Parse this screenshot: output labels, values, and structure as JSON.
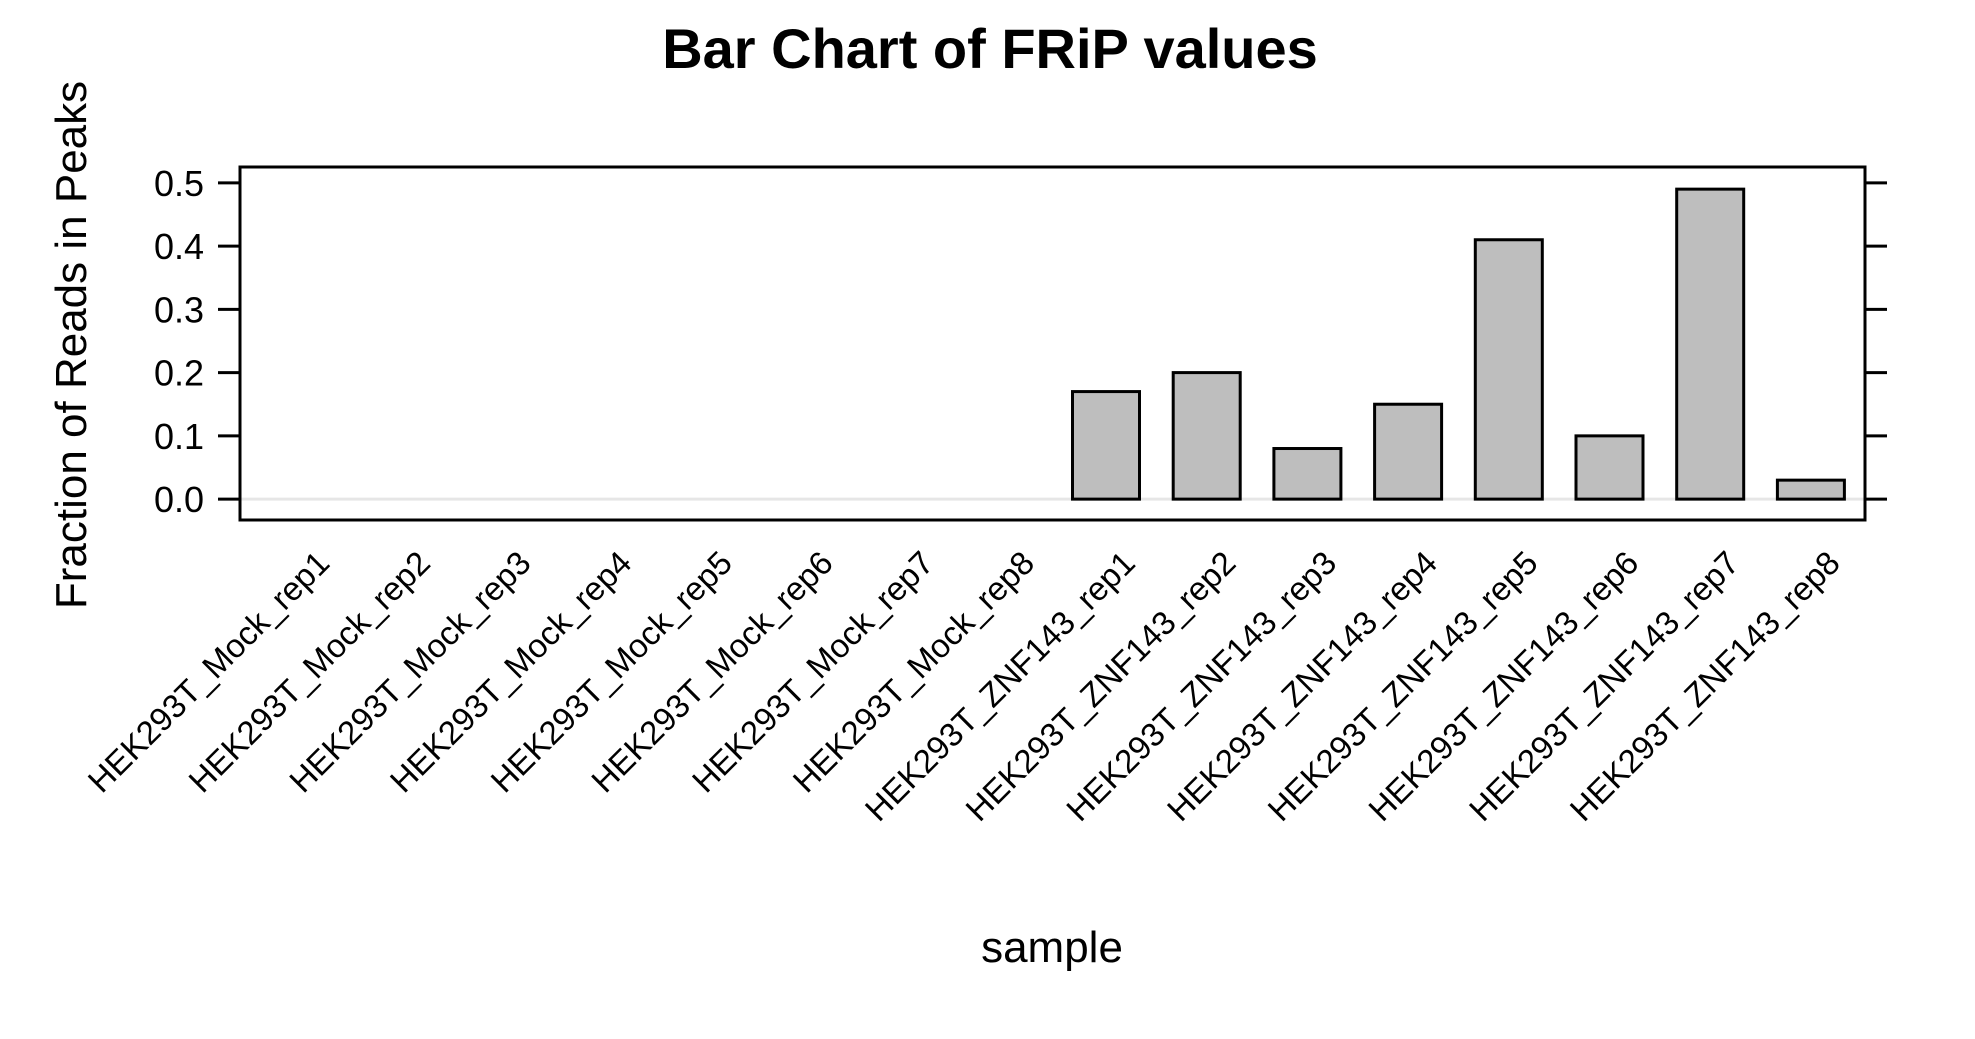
{
  "chart_data": {
    "type": "bar",
    "title": "Bar Chart of FRiP values",
    "xlabel": "sample",
    "ylabel": "Fraction of Reads in Peaks",
    "categories": [
      "HEK293T_Mock_rep1",
      "HEK293T_Mock_rep2",
      "HEK293T_Mock_rep3",
      "HEK293T_Mock_rep4",
      "HEK293T_Mock_rep5",
      "HEK293T_Mock_rep6",
      "HEK293T_Mock_rep7",
      "HEK293T_Mock_rep8",
      "HEK293T_ZNF143_rep1",
      "HEK293T_ZNF143_rep2",
      "HEK293T_ZNF143_rep3",
      "HEK293T_ZNF143_rep4",
      "HEK293T_ZNF143_rep5",
      "HEK293T_ZNF143_rep6",
      "HEK293T_ZNF143_rep7",
      "HEK293T_ZNF143_rep8"
    ],
    "values": [
      0,
      0,
      0,
      0,
      0,
      0,
      0,
      0,
      0.17,
      0.2,
      0.08,
      0.15,
      0.41,
      0.1,
      0.49,
      0.03
    ],
    "ylim": [
      -0.033,
      0.525
    ],
    "yticks": [
      "0.0",
      "0.1",
      "0.2",
      "0.3",
      "0.4",
      "0.5"
    ],
    "grid": false,
    "legend": "none",
    "bar_color": "#bebebe",
    "bar_border_color": "#000000",
    "baseline_color": "#e6e6e6"
  }
}
